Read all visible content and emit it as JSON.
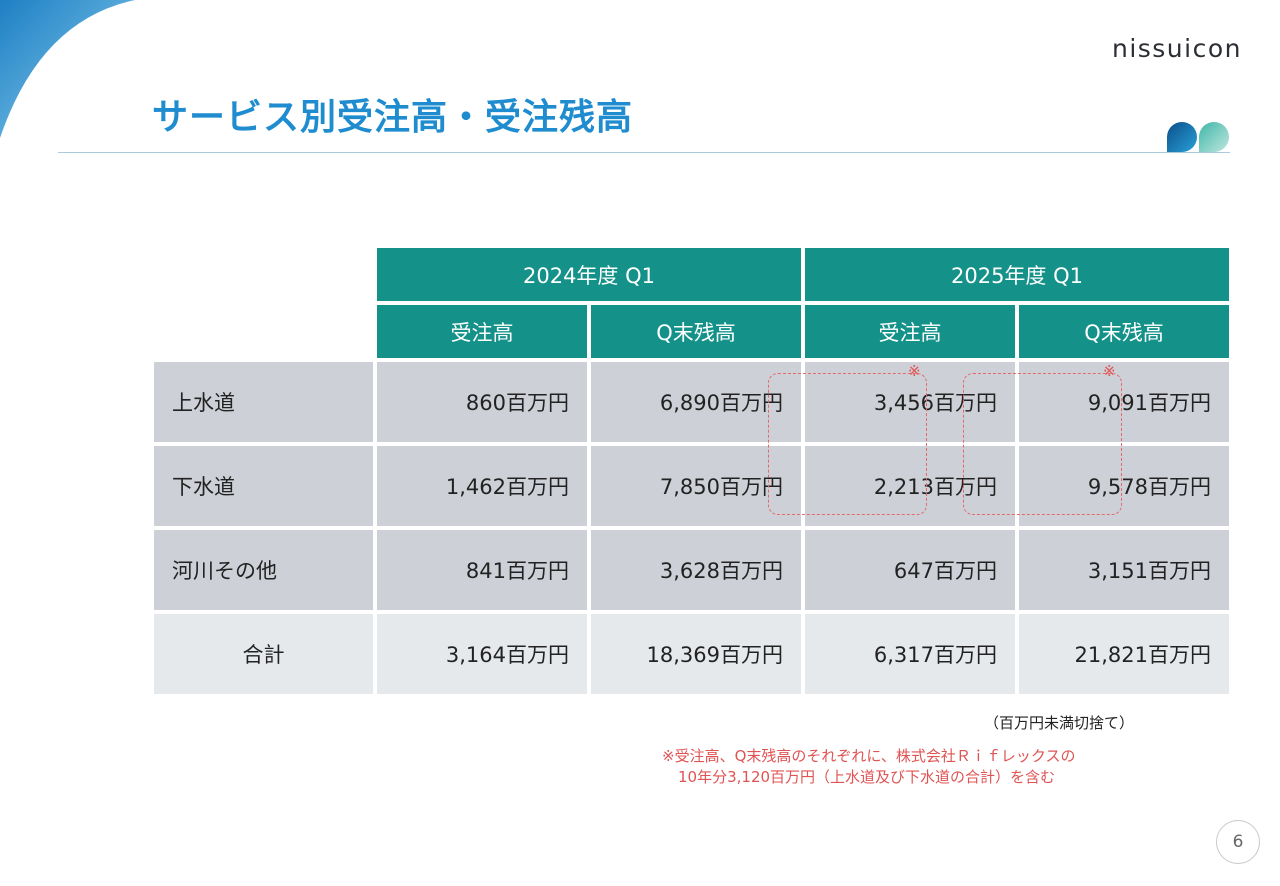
{
  "brand": {
    "logo_text": "nissuicon"
  },
  "title": "サービス別受注高・受注残高",
  "table": {
    "groups": [
      "2024年度 Q1",
      "2025年度 Q1"
    ],
    "subheaders": [
      "受注高",
      "Q末残高",
      "受注高",
      "Q末残高"
    ],
    "rows": [
      {
        "label": "上水道",
        "values": [
          "860百万円",
          "6,890百万円",
          "3,456百万円",
          "9,091百万円"
        ]
      },
      {
        "label": "下水道",
        "values": [
          "1,462百万円",
          "7,850百万円",
          "2,213百万円",
          "9,578百万円"
        ]
      },
      {
        "label": "河川その他",
        "values": [
          "841百万円",
          "3,628百万円",
          "647百万円",
          "3,151百万円"
        ]
      }
    ],
    "total": {
      "label": "合計",
      "values": [
        "3,164百万円",
        "18,369百万円",
        "6,317百万円",
        "21,821百万円"
      ]
    }
  },
  "ref_mark": "※",
  "notes": {
    "rounding": "（百万円未満切捨て）",
    "asterisk_line1": "※受注高、Q末残高のそれぞれに、株式会社Ｒｉｆレックスの",
    "asterisk_line2": "10年分3,120百万円（上水道及び下水道の合計）を含む"
  },
  "page_number": "6",
  "colors": {
    "title": "#1e8ccf",
    "header_bg": "#149189",
    "row_bg": "#cdd0d6",
    "total_bg": "#e6e9ec",
    "note_red": "#e05454"
  }
}
